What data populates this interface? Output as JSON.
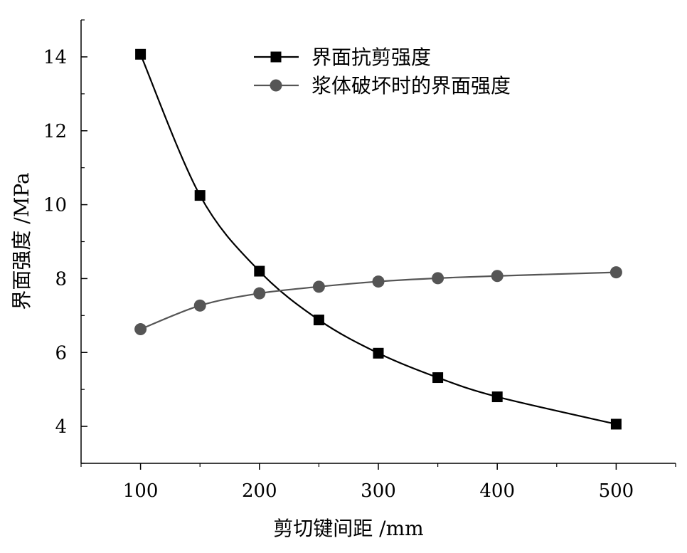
{
  "chart_data": {
    "type": "line",
    "xlabel": "剪切键间距 /mm",
    "ylabel": "界面强度 /MPa",
    "xlim": [
      50,
      550
    ],
    "ylim": [
      3,
      15
    ],
    "x_ticks_major": [
      100,
      200,
      300,
      400,
      500
    ],
    "x_ticks_minor": [
      50,
      150,
      250,
      350,
      450,
      550
    ],
    "y_ticks_major": [
      4,
      6,
      8,
      10,
      12,
      14
    ],
    "y_ticks_minor": [
      3,
      5,
      7,
      9,
      11,
      13,
      15
    ],
    "grid": false,
    "legend_position": "top-center",
    "series": [
      {
        "name": "界面抗剪强度",
        "marker": "square",
        "color": "#000000",
        "x": [
          100,
          150,
          200,
          250,
          300,
          350,
          400,
          500
        ],
        "y": [
          14.07,
          10.25,
          8.2,
          6.88,
          5.98,
          5.32,
          4.8,
          4.06
        ]
      },
      {
        "name": "浆体破坏时的界面强度",
        "marker": "circle",
        "color": "#555555",
        "x": [
          100,
          150,
          200,
          250,
          300,
          350,
          400,
          500
        ],
        "y": [
          6.63,
          7.27,
          7.6,
          7.78,
          7.92,
          8.01,
          8.07,
          8.17
        ]
      }
    ]
  }
}
